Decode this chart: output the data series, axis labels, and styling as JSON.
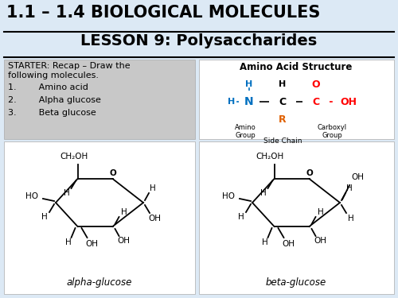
{
  "background_color": "#dce9f5",
  "title_line1": "1.1 – 1.4 BIOLOGICAL MOLECULES",
  "title_line2": "LESSON 9: Polysaccharides",
  "starter_box_color": "#c8c8c8",
  "starter_title": "STARTER: Recap – Draw the\nfollowing molecules.",
  "starter_items": [
    "1.        Amino acid",
    "2.        Alpha glucose",
    "3.        Beta glucose"
  ],
  "amino_acid_title": "Amino Acid Structure",
  "white_box_color": "#ffffff",
  "blue_color": "#0070c0",
  "red_color": "#ff0000",
  "orange_color": "#e06000"
}
